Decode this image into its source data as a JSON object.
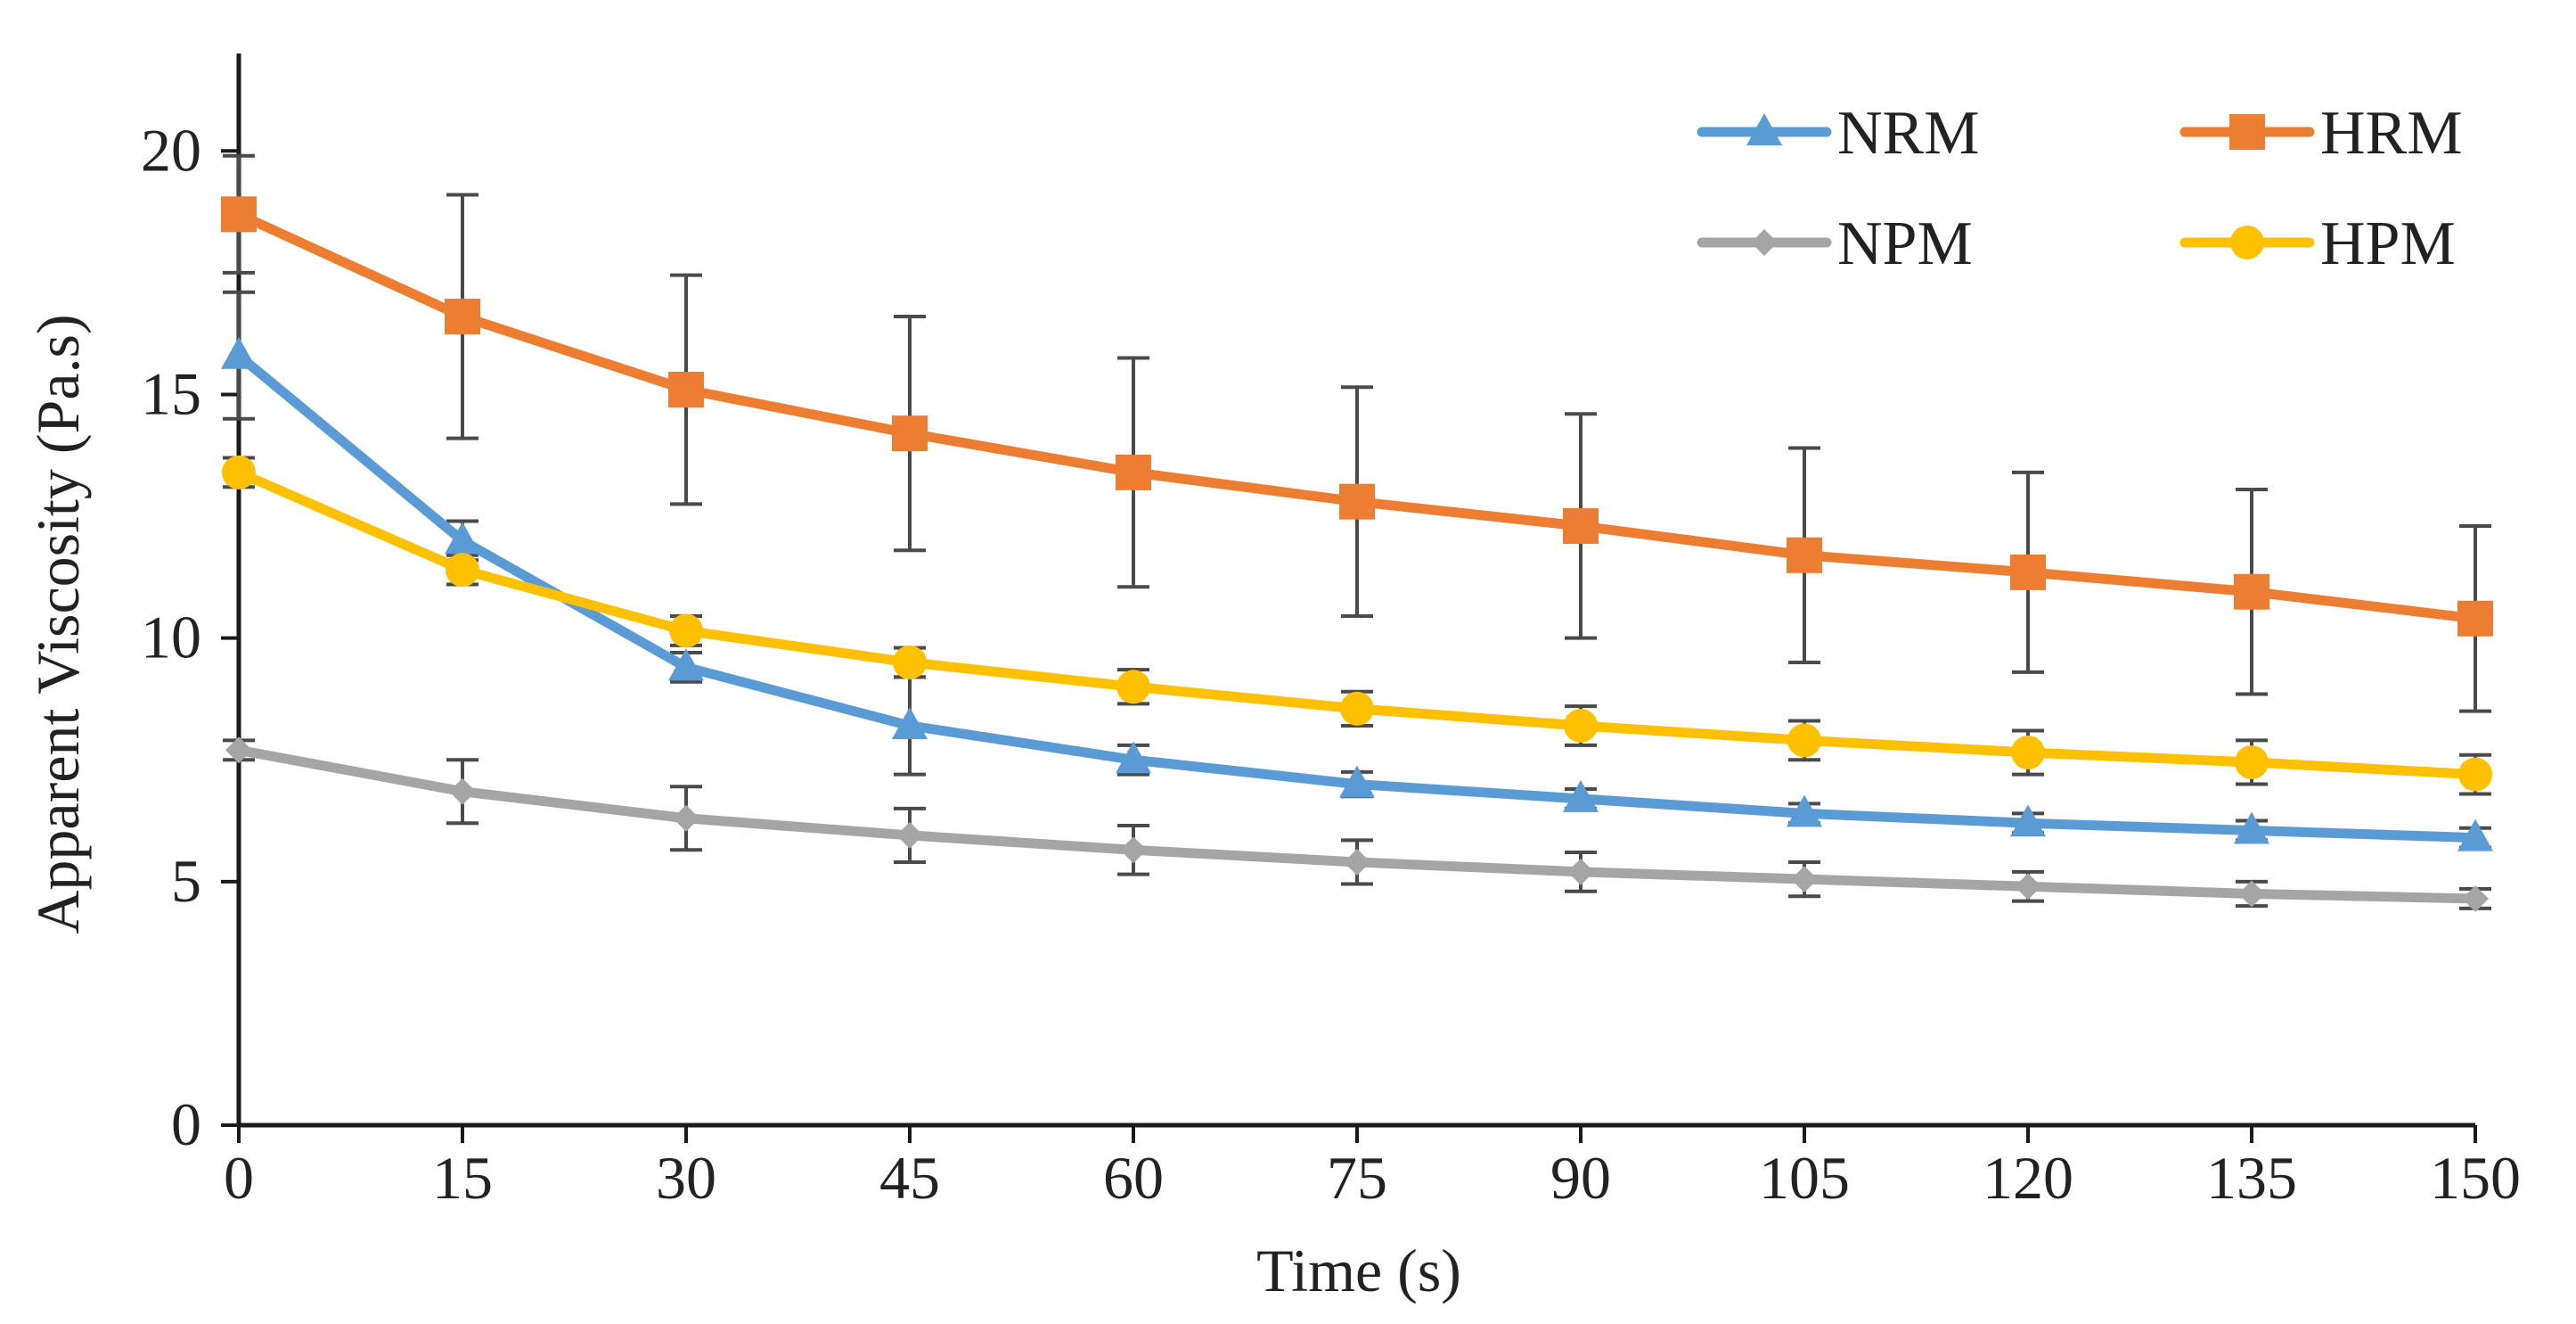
{
  "chart_data": {
    "type": "line",
    "title": "",
    "xlabel": "Time (s)",
    "ylabel": "Apparent Viscosity (Pa.s)",
    "x": [
      0,
      15,
      30,
      45,
      60,
      75,
      90,
      105,
      120,
      135,
      150
    ],
    "xlim": [
      0,
      150
    ],
    "ylim": [
      0,
      22
    ],
    "y_ticks": [
      0,
      5,
      10,
      15,
      20
    ],
    "grid": false,
    "legend_position": "top-right",
    "series": [
      {
        "name": "NRM",
        "color": "#5b9bd5",
        "marker": "triangle",
        "values": [
          15.8,
          12.0,
          9.4,
          8.2,
          7.5,
          7.0,
          6.7,
          6.4,
          6.2,
          6.05,
          5.9
        ],
        "errors": [
          1.3,
          0.4,
          0.3,
          1.0,
          0.3,
          0.25,
          0.2,
          0.2,
          0.2,
          0.2,
          0.2
        ]
      },
      {
        "name": "HRM",
        "color": "#ed7d31",
        "marker": "square",
        "values": [
          18.7,
          16.6,
          15.1,
          14.2,
          13.4,
          12.8,
          12.3,
          11.7,
          11.35,
          10.95,
          10.4
        ],
        "errors": [
          1.2,
          2.5,
          2.35,
          2.4,
          2.35,
          2.35,
          2.3,
          2.2,
          2.05,
          2.1,
          1.9
        ]
      },
      {
        "name": "NPM",
        "color": "#a5a5a5",
        "marker": "diamond",
        "values": [
          7.7,
          6.85,
          6.3,
          5.95,
          5.65,
          5.4,
          5.2,
          5.05,
          4.9,
          4.75,
          4.65
        ],
        "errors": [
          0.2,
          0.65,
          0.65,
          0.55,
          0.5,
          0.45,
          0.4,
          0.35,
          0.3,
          0.25,
          0.2
        ]
      },
      {
        "name": "HPM",
        "color": "#ffc000",
        "marker": "circle",
        "values": [
          13.4,
          11.4,
          10.15,
          9.5,
          9.0,
          8.55,
          8.2,
          7.9,
          7.65,
          7.45,
          7.2
        ],
        "errors": [
          0.3,
          0.3,
          0.3,
          0.3,
          0.35,
          0.35,
          0.4,
          0.4,
          0.45,
          0.45,
          0.4
        ]
      }
    ]
  }
}
